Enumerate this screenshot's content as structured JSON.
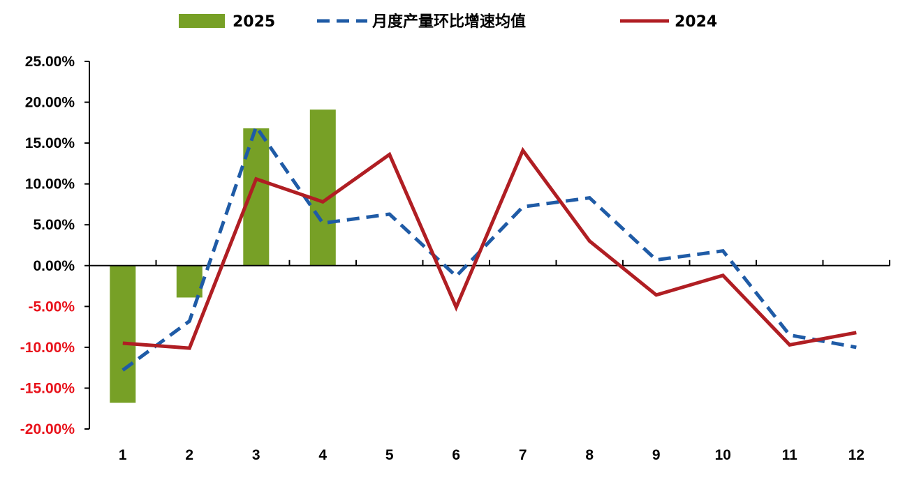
{
  "chart_data": {
    "type": "bar+line",
    "categories": [
      "1",
      "2",
      "3",
      "4",
      "5",
      "6",
      "7",
      "8",
      "9",
      "10",
      "11",
      "12"
    ],
    "series": [
      {
        "name": "2025",
        "type": "bar",
        "color": "#77A026",
        "values": [
          -16.8,
          -3.9,
          16.8,
          19.1,
          null,
          null,
          null,
          null,
          null,
          null,
          null,
          null
        ]
      },
      {
        "name": "月度产量环比增速均值",
        "type": "line",
        "style": "dashed",
        "color": "#1F5BA6",
        "values": [
          -12.8,
          -6.8,
          17.0,
          5.2,
          6.3,
          -1.3,
          7.2,
          8.3,
          0.7,
          1.8,
          -8.5,
          -10.0
        ]
      },
      {
        "name": "2024",
        "type": "line",
        "style": "solid",
        "color": "#B01E23",
        "values": [
          -9.5,
          -10.1,
          10.6,
          7.8,
          13.6,
          -5.1,
          14.1,
          3.0,
          -3.6,
          -1.2,
          -9.7,
          -8.2
        ]
      }
    ],
    "y_ticks": [
      "25.00%",
      "20.00%",
      "15.00%",
      "10.00%",
      "5.00%",
      "0.00%",
      "-5.00%",
      "-10.00%",
      "-15.00%",
      "-20.00%"
    ],
    "ylim": [
      -20,
      25
    ],
    "y_tick_colors": {
      "positive": "#000000",
      "negative": "#E8111A"
    },
    "legend_position": "top",
    "grid": false
  }
}
